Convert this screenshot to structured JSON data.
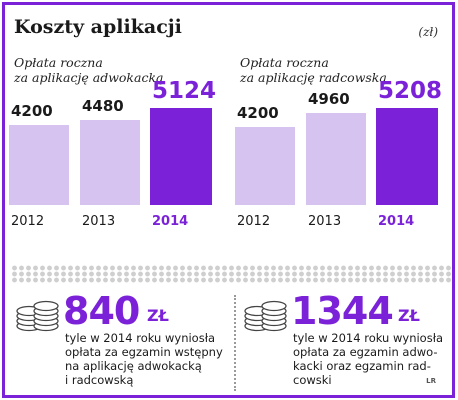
{
  "header": {
    "title": "Koszty aplikacji",
    "unit": "(zł)"
  },
  "chart_data": [
    {
      "type": "bar",
      "title": "Opłata roczna za aplikację adwokacką",
      "title_lines": [
        "Opłata roczna",
        "za aplikację adwokacką"
      ],
      "categories": [
        "2012",
        "2013",
        "2014"
      ],
      "values": [
        4200,
        4480,
        5124
      ],
      "value_labels": [
        "4200",
        "4480",
        "5124"
      ],
      "highlight_index": 2,
      "colors": [
        "#d6c3f0",
        "#d6c3f0",
        "#7b22d9"
      ],
      "xlabel": "",
      "ylabel": "",
      "ylim": [
        0,
        5124
      ],
      "grid": false,
      "legend": "none"
    },
    {
      "type": "bar",
      "title": "Opłata roczna za aplikację radcowską",
      "title_lines": [
        "Opłata roczna",
        "za aplikację radcowską"
      ],
      "categories": [
        "2012",
        "2013",
        "2014"
      ],
      "values": [
        4200,
        4960,
        5208
      ],
      "value_labels": [
        "4200",
        "4960",
        "5208"
      ],
      "highlight_index": 2,
      "colors": [
        "#d6c3f0",
        "#d6c3f0",
        "#7b22d9"
      ],
      "xlabel": "",
      "ylabel": "",
      "ylim": [
        0,
        5208
      ],
      "grid": false,
      "legend": "none"
    }
  ],
  "facts": [
    {
      "amount": "840",
      "currency": "ZŁ",
      "lines": [
        "tyle w 2014 roku wyniosła",
        "opłata za egzamin wstępny",
        "na aplikację adwokacką",
        "i radcowską"
      ]
    },
    {
      "amount": "1344",
      "currency": "ZŁ",
      "lines": [
        "tyle w 2014 roku wyniosła",
        "opłata za egzamin adwo-",
        "kacki oraz egzamin rad-",
        "cowski"
      ]
    }
  ],
  "credit": "LR",
  "icons": {
    "coins": "coin-stack-icon"
  },
  "colors": {
    "accent": "#7b22d9",
    "light_bar": "#d6c3f0",
    "border": "#7b22d9"
  }
}
